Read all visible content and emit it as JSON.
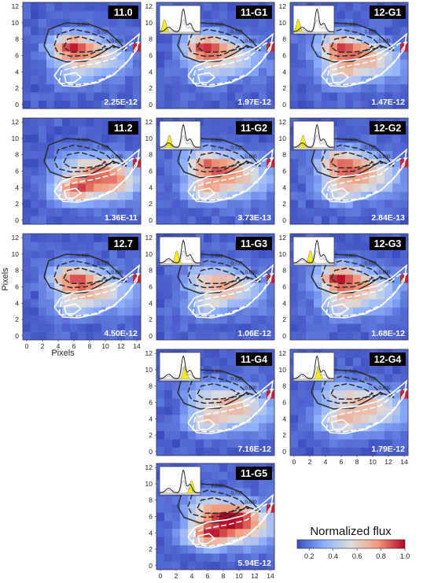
{
  "chart_data": {
    "type": "heatmap",
    "x_ticks": [
      "0",
      "2",
      "4",
      "6",
      "8",
      "10",
      "12",
      "14"
    ],
    "y_ticks": [
      "0",
      "2",
      "4",
      "6",
      "8",
      "10",
      "12"
    ],
    "xlabel": "Pixels",
    "ylabel": "Pixels",
    "xlim": [
      -0.5,
      14.5
    ],
    "ylim": [
      -0.5,
      12.5
    ],
    "contour_levels": [
      "0.900",
      "0.750",
      "0.600"
    ],
    "colorbar": {
      "label": "Normalized flux",
      "ticks": [
        "0.2",
        "0.4",
        "0.6",
        "0.8",
        "1.0"
      ],
      "range": [
        0.1,
        1.0
      ],
      "colormap": "coolwarm"
    },
    "panels": [
      {
        "label": "11.0",
        "value": "2.25E-12",
        "row": 0,
        "col": 0,
        "inset": false,
        "weights": [
          0.8,
          0.45,
          0.25,
          0.15
        ]
      },
      {
        "label": "11-G1",
        "value": "1.97E-12",
        "row": 0,
        "col": 1,
        "inset": true,
        "inset_peak": 0.12,
        "weights": [
          0.8,
          0.45,
          0.25,
          0.15
        ]
      },
      {
        "label": "12-G1",
        "value": "1.47E-12",
        "row": 0,
        "col": 2,
        "inset": true,
        "inset_peak": 0.12,
        "weights": [
          0.7,
          0.5,
          0.45,
          0.3
        ]
      },
      {
        "label": "11.2",
        "value": "1.36E-11",
        "row": 1,
        "col": 0,
        "inset": false,
        "weights": [
          0.2,
          0.35,
          0.75,
          0.65
        ]
      },
      {
        "label": "11-G2",
        "value": "3.73E-13",
        "row": 1,
        "col": 1,
        "inset": true,
        "inset_peak": 0.24,
        "weights": [
          0.6,
          0.5,
          0.55,
          0.35
        ]
      },
      {
        "label": "12-G2",
        "value": "2.84E-13",
        "row": 1,
        "col": 2,
        "inset": true,
        "inset_peak": 0.24,
        "weights": [
          0.65,
          0.5,
          0.5,
          0.3
        ]
      },
      {
        "label": "12.7",
        "value": "4.50E-12",
        "row": 2,
        "col": 0,
        "inset": false,
        "weights": [
          0.7,
          0.45,
          0.4,
          0.25
        ]
      },
      {
        "label": "11-G3",
        "value": "1.06E-12",
        "row": 2,
        "col": 1,
        "inset": true,
        "inset_peak": 0.42,
        "weights": [
          0.35,
          0.55,
          0.3,
          0.15
        ]
      },
      {
        "label": "12-G3",
        "value": "1.68E-12",
        "row": 2,
        "col": 2,
        "inset": true,
        "inset_peak": 0.42,
        "weights": [
          0.8,
          0.45,
          0.4,
          0.25
        ]
      },
      {
        "label": "11-G4",
        "value": "7.16E-12",
        "row": 3,
        "col": 1,
        "inset": true,
        "inset_peak": 0.62,
        "weights": [
          0.25,
          0.35,
          0.5,
          0.4
        ]
      },
      {
        "label": "12-G4",
        "value": "1.79E-12",
        "row": 3,
        "col": 2,
        "inset": true,
        "inset_peak": 0.62,
        "weights": [
          0.3,
          0.35,
          0.55,
          0.4
        ]
      },
      {
        "label": "11-G5",
        "value": "5.94E-12",
        "row": 4,
        "col": 1,
        "inset": true,
        "inset_peak": 0.78,
        "weights": [
          0.35,
          0.6,
          0.8,
          0.65
        ]
      }
    ]
  }
}
